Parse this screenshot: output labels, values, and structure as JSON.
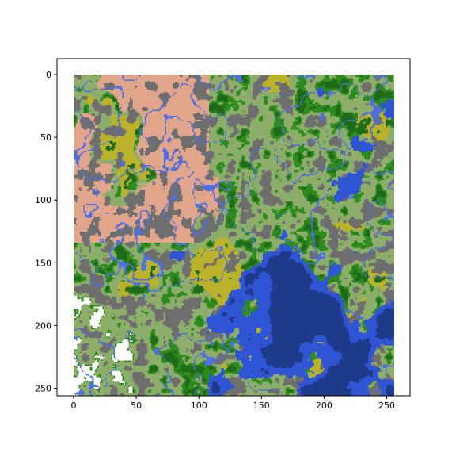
{
  "chart_data": {
    "type": "heatmap",
    "title": "",
    "xlabel": "",
    "ylabel": "",
    "width_cells": 256,
    "height_cells": 256,
    "xlim": [
      0,
      256
    ],
    "ylim": [
      256,
      0
    ],
    "x_ticks": [
      0,
      50,
      100,
      150,
      200,
      250
    ],
    "y_ticks": [
      0,
      50,
      100,
      150,
      200,
      250
    ],
    "x_tick_labels": [
      "0",
      "50",
      "100",
      "150",
      "200",
      "250"
    ],
    "y_tick_labels": [
      "0",
      "50",
      "100",
      "150",
      "200",
      "250"
    ],
    "grid": false,
    "legend": "none",
    "palette": {
      "deep_ocean": "#1e3a8a",
      "ocean": "#2f54d4",
      "plains": "#8cae6a",
      "desert": "#e0a58a",
      "mountain": "#6e6e6e",
      "forest": "#1f6b1a",
      "jungle": "#2e8b1e",
      "savanna": "#b9b22a",
      "snow": "#ffffff",
      "river": "#4f6fe0"
    }
  }
}
